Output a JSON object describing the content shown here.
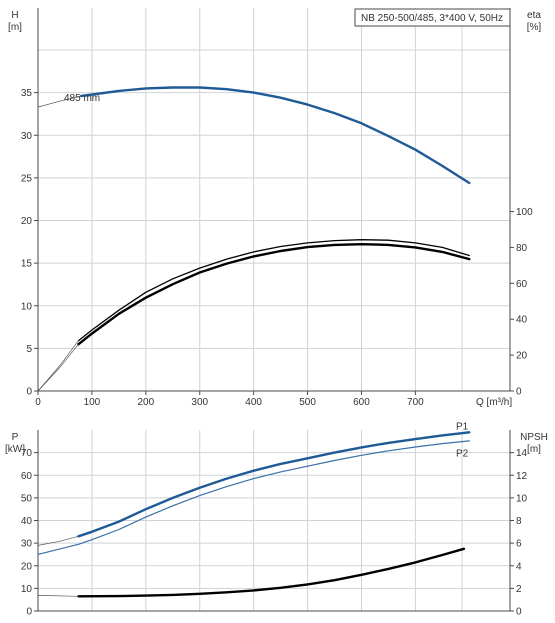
{
  "colors": {
    "blue": "#1f5a96",
    "black": "#000000",
    "grid": "#cfd3d8",
    "axis": "#4a4a4a",
    "thin_blue": "#3a6fa8"
  },
  "chart_data": [
    {
      "type": "line",
      "title": "NB 250-500/485, 3*400 V, 50Hz",
      "xlabel": "Q [m³/h]",
      "ylabel_left": [
        "H",
        "[m]"
      ],
      "ylabel_right": [
        "eta",
        "[%]"
      ],
      "xlim": [
        0,
        805
      ],
      "ylim_left": [
        0,
        40
      ],
      "ylim_right": [
        0,
        190
      ],
      "xticks": [
        0,
        100,
        200,
        300,
        400,
        500,
        600,
        700
      ],
      "yticks_left": [
        0,
        5,
        10,
        15,
        20,
        25,
        30,
        35
      ],
      "yticks_right": [
        0,
        20,
        40,
        60,
        80,
        100
      ],
      "grid": true,
      "annotations": [
        {
          "text": "485 mm"
        }
      ],
      "series": [
        {
          "name": "485 mm",
          "axis": "left",
          "style": "thick-blue",
          "x": [
            80,
            150,
            200,
            250,
            300,
            350,
            400,
            450,
            500,
            550,
            600,
            650,
            700,
            750,
            800
          ],
          "y": [
            34.6,
            35.2,
            35.5,
            35.6,
            35.6,
            35.4,
            35.0,
            34.4,
            33.6,
            32.6,
            31.4,
            29.9,
            28.3,
            26.4,
            24.4
          ]
        },
        {
          "name": "H extrapolation",
          "axis": "left",
          "style": "thin",
          "x": [
            0,
            40,
            80
          ],
          "y": [
            33.3,
            34.0,
            34.6
          ]
        },
        {
          "name": "eta upper",
          "axis": "right",
          "style": "thin-black",
          "x": [
            75,
            100,
            150,
            200,
            250,
            300,
            350,
            400,
            450,
            500,
            550,
            600,
            650,
            700,
            750,
            800
          ],
          "y": [
            28,
            34,
            45,
            55,
            62.5,
            68.5,
            73.5,
            77.5,
            80.5,
            82.5,
            83.8,
            84.3,
            84.0,
            82.5,
            80.0,
            75.5
          ]
        },
        {
          "name": "eta lower",
          "axis": "right",
          "style": "thick-black",
          "x": [
            75,
            100,
            150,
            200,
            250,
            300,
            350,
            400,
            450,
            500,
            550,
            600,
            650,
            700,
            750,
            800
          ],
          "y": [
            26,
            32,
            43,
            52,
            59.5,
            66,
            71,
            75,
            78,
            80.2,
            81.4,
            81.8,
            81.4,
            80.0,
            77.5,
            73.5
          ]
        },
        {
          "name": "eta extrapolation",
          "axis": "right",
          "style": "thin",
          "x": [
            0,
            40,
            75
          ],
          "y": [
            0,
            13,
            26
          ]
        },
        {
          "name": "eta extrapolation 2",
          "axis": "right",
          "style": "thin",
          "x": [
            0,
            40,
            75
          ],
          "y": [
            0,
            14,
            28
          ]
        }
      ]
    },
    {
      "type": "line",
      "xlabel": "",
      "ylabel_left": [
        "P",
        "[kW]"
      ],
      "ylabel_right": [
        "NPSH",
        "[m]"
      ],
      "xlim": [
        0,
        805
      ],
      "ylim_left": [
        0,
        80
      ],
      "ylim_right": [
        0,
        16
      ],
      "yticks_left": [
        0,
        10,
        20,
        30,
        40,
        50,
        60,
        70
      ],
      "yticks_right": [
        0,
        2,
        4,
        6,
        8,
        10,
        12,
        14
      ],
      "grid": true,
      "series": [
        {
          "name": "P1",
          "axis": "left",
          "style": "thick-blue",
          "x": [
            75,
            100,
            150,
            200,
            250,
            300,
            350,
            400,
            450,
            500,
            550,
            600,
            650,
            700,
            750,
            800
          ],
          "y": [
            33,
            35,
            39.5,
            45,
            50,
            54.5,
            58.5,
            62,
            65,
            67.5,
            70,
            72.3,
            74.3,
            76,
            77.6,
            79
          ]
        },
        {
          "name": "P2",
          "axis": "left",
          "style": "thin-blue",
          "x": [
            0,
            75,
            100,
            150,
            200,
            250,
            300,
            350,
            400,
            450,
            500,
            550,
            600,
            650,
            700,
            750,
            800
          ],
          "y": [
            25,
            29.5,
            31.5,
            36,
            41.5,
            46.5,
            51,
            55,
            58.5,
            61.5,
            64,
            66.5,
            68.8,
            70.8,
            72.5,
            74,
            75.2
          ]
        },
        {
          "name": "P1 extrapolation",
          "axis": "left",
          "style": "thin",
          "x": [
            0,
            40,
            75
          ],
          "y": [
            29,
            30.8,
            33
          ]
        },
        {
          "name": "NPSH",
          "axis": "right",
          "style": "thick-black",
          "x": [
            75,
            150,
            200,
            250,
            300,
            350,
            400,
            450,
            500,
            550,
            600,
            650,
            700,
            750,
            790
          ],
          "y": [
            1.3,
            1.32,
            1.36,
            1.42,
            1.52,
            1.65,
            1.82,
            2.05,
            2.35,
            2.72,
            3.2,
            3.72,
            4.3,
            4.95,
            5.5
          ]
        },
        {
          "name": "NPSH extrapolation",
          "axis": "right",
          "style": "thin",
          "x": [
            0,
            75
          ],
          "y": [
            1.38,
            1.3
          ]
        }
      ],
      "labels": [
        "P1",
        "P2"
      ]
    }
  ]
}
